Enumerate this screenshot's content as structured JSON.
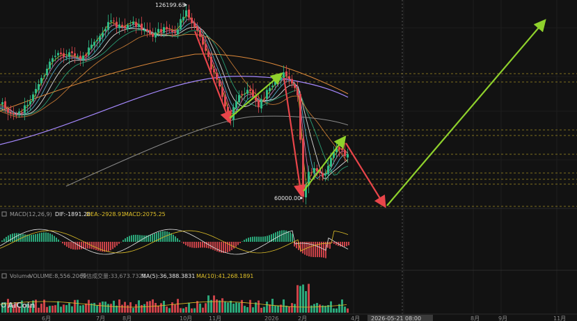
{
  "chart_data": {
    "type": "candlestick",
    "annotations": {
      "high_label": "126199.63",
      "low_label": "60000.00"
    },
    "macd": {
      "title": "MACD(12,26,9)",
      "dif": "DIF:-1891.28",
      "dea": "DEA:-2928.91",
      "macd": "MACD:2075.25"
    },
    "volume": {
      "title": "Volume",
      "volume": "VOLUME:8,556.2069",
      "turnover": "预估成交量:33,673.7321",
      "ma5": "MA(5):36,388.3831",
      "ma10": "MA(10):41,268.1891"
    },
    "x_ticks": [
      "6月",
      "7月",
      "8月",
      "10月",
      "11月",
      "2026",
      "2月",
      "4月",
      "8月",
      "9月",
      "11月"
    ],
    "cursor_date": "2026-05-21 08:00",
    "watermark": "AiCoin",
    "price_range": [
      45000,
      130000
    ],
    "key_levels": [
      126199.63,
      60000.0
    ],
    "projection": {
      "down_target_period": "2026-05",
      "up_target_period": "2026-10"
    }
  },
  "colors": {
    "background": "#121212",
    "up_candle": "#2fb886",
    "down_candle": "#e0484f",
    "arrow_down": "#e8454a",
    "arrow_up": "#8fd12c",
    "dashed_level": "#c9b02a",
    "ma_purple": "#a689ff",
    "ma_orange": "#e08a3a",
    "ma_gray": "#8a8a8a"
  }
}
